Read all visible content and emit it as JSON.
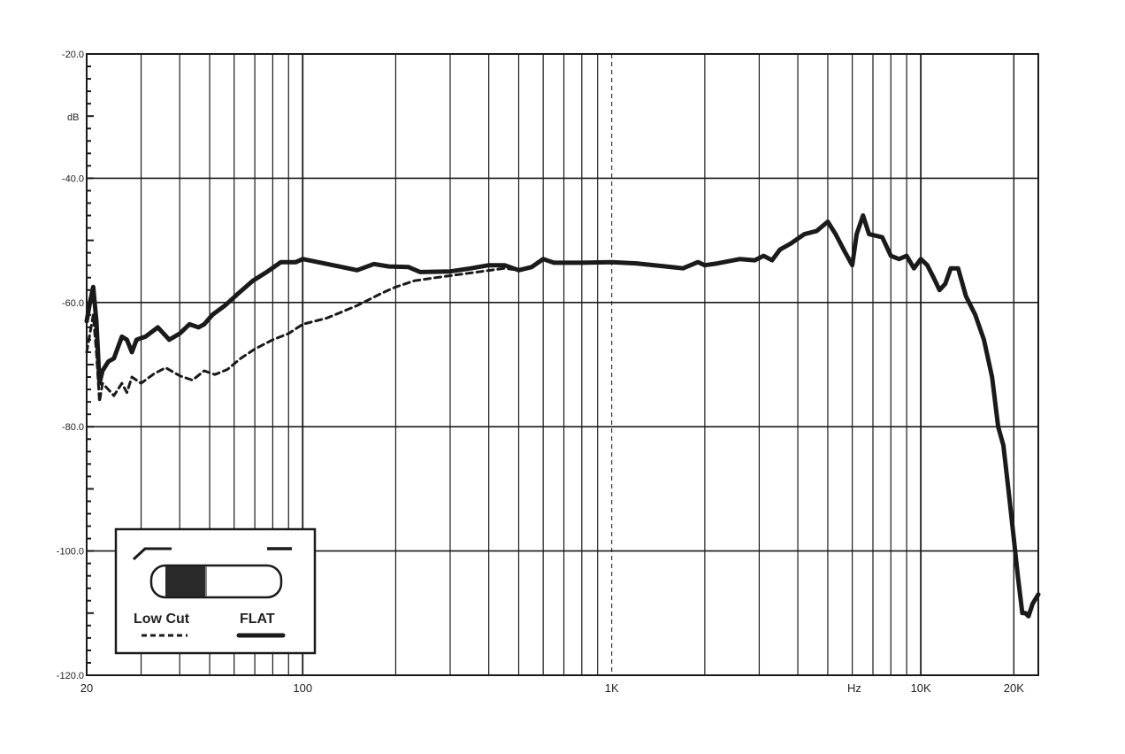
{
  "chart_data": {
    "type": "line",
    "xscale": "log",
    "xlim": [
      20,
      24000
    ],
    "ylim": [
      -120,
      -20
    ],
    "ylabel": "dB",
    "xunit": "Hz",
    "grid": true,
    "y_ticks": [
      {
        "value": -20,
        "label": "-20.0"
      },
      {
        "value": -40,
        "label": "-40.0"
      },
      {
        "value": -60,
        "label": "-60.0"
      },
      {
        "value": -80,
        "label": "-80.0"
      },
      {
        "value": -100,
        "label": "-100.0"
      },
      {
        "value": -120,
        "label": "-120.0"
      }
    ],
    "x_ticks": [
      {
        "value": 20,
        "label": "20"
      },
      {
        "value": 100,
        "label": "100"
      },
      {
        "value": 1000,
        "label": "1K"
      },
      {
        "value": 10000,
        "label": "10K"
      },
      {
        "value": 20000,
        "label": "20K"
      }
    ],
    "legend_position": "bottom-left",
    "series": [
      {
        "name": "FLAT",
        "style": "solid",
        "color": "#1a1a1a",
        "points": [
          [
            20,
            -63
          ],
          [
            20.5,
            -60
          ],
          [
            21,
            -57.5
          ],
          [
            21.5,
            -63
          ],
          [
            22,
            -73
          ],
          [
            22.5,
            -71
          ],
          [
            23.5,
            -69.5
          ],
          [
            24.5,
            -69
          ],
          [
            26,
            -65.5
          ],
          [
            27,
            -66
          ],
          [
            28,
            -68
          ],
          [
            29,
            -66
          ],
          [
            31,
            -65.5
          ],
          [
            34,
            -64
          ],
          [
            37,
            -66
          ],
          [
            40,
            -65
          ],
          [
            43,
            -63.5
          ],
          [
            46,
            -64
          ],
          [
            48,
            -63.5
          ],
          [
            51,
            -62
          ],
          [
            56,
            -60.5
          ],
          [
            62,
            -58.5
          ],
          [
            69,
            -56.5
          ],
          [
            77,
            -55
          ],
          [
            85,
            -53.5
          ],
          [
            95,
            -53.5
          ],
          [
            100,
            -53
          ],
          [
            120,
            -53.8
          ],
          [
            150,
            -54.8
          ],
          [
            170,
            -53.8
          ],
          [
            190,
            -54.2
          ],
          [
            220,
            -54.3
          ],
          [
            240,
            -55.1
          ],
          [
            300,
            -55
          ],
          [
            350,
            -54.5
          ],
          [
            400,
            -54
          ],
          [
            450,
            -54
          ],
          [
            500,
            -54.8
          ],
          [
            550,
            -54.3
          ],
          [
            600,
            -53
          ],
          [
            650,
            -53.6
          ],
          [
            800,
            -53.6
          ],
          [
            1000,
            -53.5
          ],
          [
            1200,
            -53.7
          ],
          [
            1500,
            -54.2
          ],
          [
            1700,
            -54.5
          ],
          [
            1900,
            -53.5
          ],
          [
            2000,
            -54
          ],
          [
            2200,
            -53.7
          ],
          [
            2600,
            -53
          ],
          [
            2900,
            -53.2
          ],
          [
            3100,
            -52.5
          ],
          [
            3300,
            -53.2
          ],
          [
            3500,
            -51.5
          ],
          [
            3800,
            -50.5
          ],
          [
            4200,
            -49
          ],
          [
            4600,
            -48.5
          ],
          [
            5000,
            -47
          ],
          [
            5300,
            -49
          ],
          [
            5700,
            -52
          ],
          [
            6000,
            -54
          ],
          [
            6200,
            -49
          ],
          [
            6500,
            -46
          ],
          [
            6800,
            -49
          ],
          [
            7500,
            -49.5
          ],
          [
            8000,
            -52.5
          ],
          [
            8500,
            -53
          ],
          [
            9000,
            -52.5
          ],
          [
            9500,
            -54.5
          ],
          [
            10000,
            -53
          ],
          [
            10500,
            -54
          ],
          [
            11000,
            -56
          ],
          [
            11500,
            -58
          ],
          [
            12000,
            -57
          ],
          [
            12500,
            -54.5
          ],
          [
            13200,
            -54.5
          ],
          [
            14000,
            -59
          ],
          [
            15000,
            -62
          ],
          [
            16000,
            -66
          ],
          [
            17000,
            -72
          ],
          [
            17800,
            -80
          ],
          [
            18500,
            -83
          ],
          [
            19200,
            -90
          ],
          [
            20000,
            -98
          ],
          [
            20600,
            -104
          ],
          [
            21300,
            -110
          ],
          [
            21800,
            -110
          ],
          [
            22300,
            -110.5
          ],
          [
            23000,
            -108.5
          ],
          [
            24000,
            -107
          ]
        ]
      },
      {
        "name": "Low Cut",
        "style": "dashed",
        "color": "#1a1a1a",
        "points": [
          [
            20,
            -68
          ],
          [
            20.5,
            -65
          ],
          [
            21,
            -62
          ],
          [
            21.5,
            -68
          ],
          [
            22,
            -76
          ],
          [
            22.5,
            -73
          ],
          [
            23.5,
            -74
          ],
          [
            24.5,
            -75
          ],
          [
            26,
            -73
          ],
          [
            27,
            -74.5
          ],
          [
            28,
            -72
          ],
          [
            30,
            -73
          ],
          [
            33,
            -71.5
          ],
          [
            36,
            -70.5
          ],
          [
            40,
            -71.8
          ],
          [
            44,
            -72.5
          ],
          [
            48,
            -71
          ],
          [
            52,
            -71.6
          ],
          [
            57,
            -70.8
          ],
          [
            63,
            -69
          ],
          [
            70,
            -67.5
          ],
          [
            80,
            -66
          ],
          [
            90,
            -65
          ],
          [
            100,
            -63.5
          ],
          [
            120,
            -62.5
          ],
          [
            150,
            -60.5
          ],
          [
            180,
            -58.5
          ],
          [
            200,
            -57.5
          ],
          [
            230,
            -56.5
          ],
          [
            270,
            -56
          ],
          [
            320,
            -55.5
          ],
          [
            380,
            -55
          ],
          [
            450,
            -54.5
          ],
          [
            500,
            -54.8
          ],
          [
            550,
            -54.3
          ],
          [
            600,
            -53
          ],
          [
            650,
            -53.6
          ],
          [
            800,
            -53.6
          ],
          [
            1000,
            -53.5
          ]
        ]
      }
    ]
  },
  "legend": {
    "items": [
      {
        "label": "Low Cut",
        "style": "dashed"
      },
      {
        "label": "FLAT",
        "style": "solid"
      }
    ],
    "switch": {
      "selected": "Low Cut",
      "knob_color": "#2a2a2a"
    }
  }
}
